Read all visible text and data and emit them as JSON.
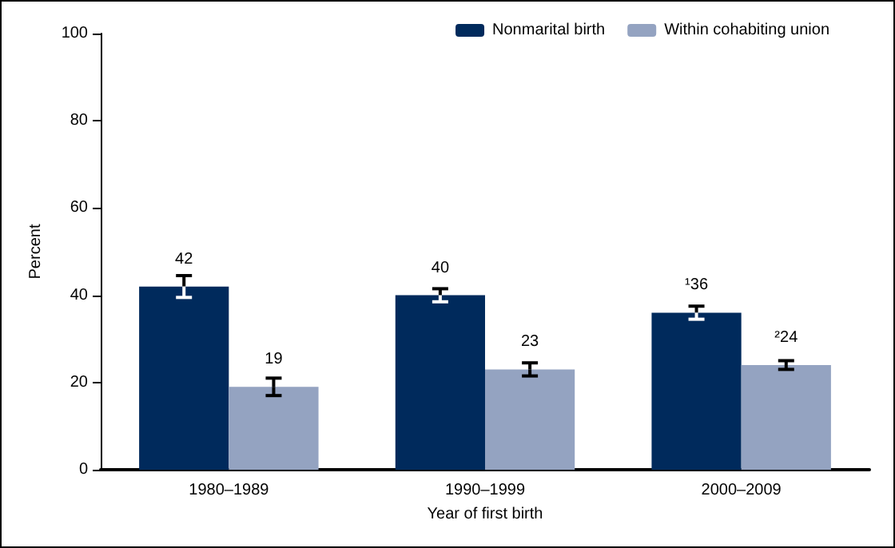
{
  "chart_data": {
    "type": "bar",
    "xlabel": "Year of first birth",
    "ylabel": "Percent",
    "categories": [
      "1980–1989",
      "1990–1999",
      "2000–2009"
    ],
    "series": [
      {
        "name": "Nonmarital birth",
        "color": "#002a5c",
        "values": [
          42,
          40,
          36
        ],
        "errors": [
          2.5,
          1.5,
          1.5
        ],
        "value_labels": [
          "42",
          "40",
          "¹36"
        ]
      },
      {
        "name": "Within cohabiting union",
        "color": "#94a3c1",
        "values": [
          19,
          23,
          24
        ],
        "errors": [
          2,
          1.5,
          1
        ],
        "value_labels": [
          "19",
          "23",
          "²24"
        ]
      }
    ],
    "ylim": [
      0,
      100
    ],
    "yticks": [
      0,
      20,
      40,
      60,
      80,
      100
    ],
    "grid": false,
    "legend": "top right"
  }
}
